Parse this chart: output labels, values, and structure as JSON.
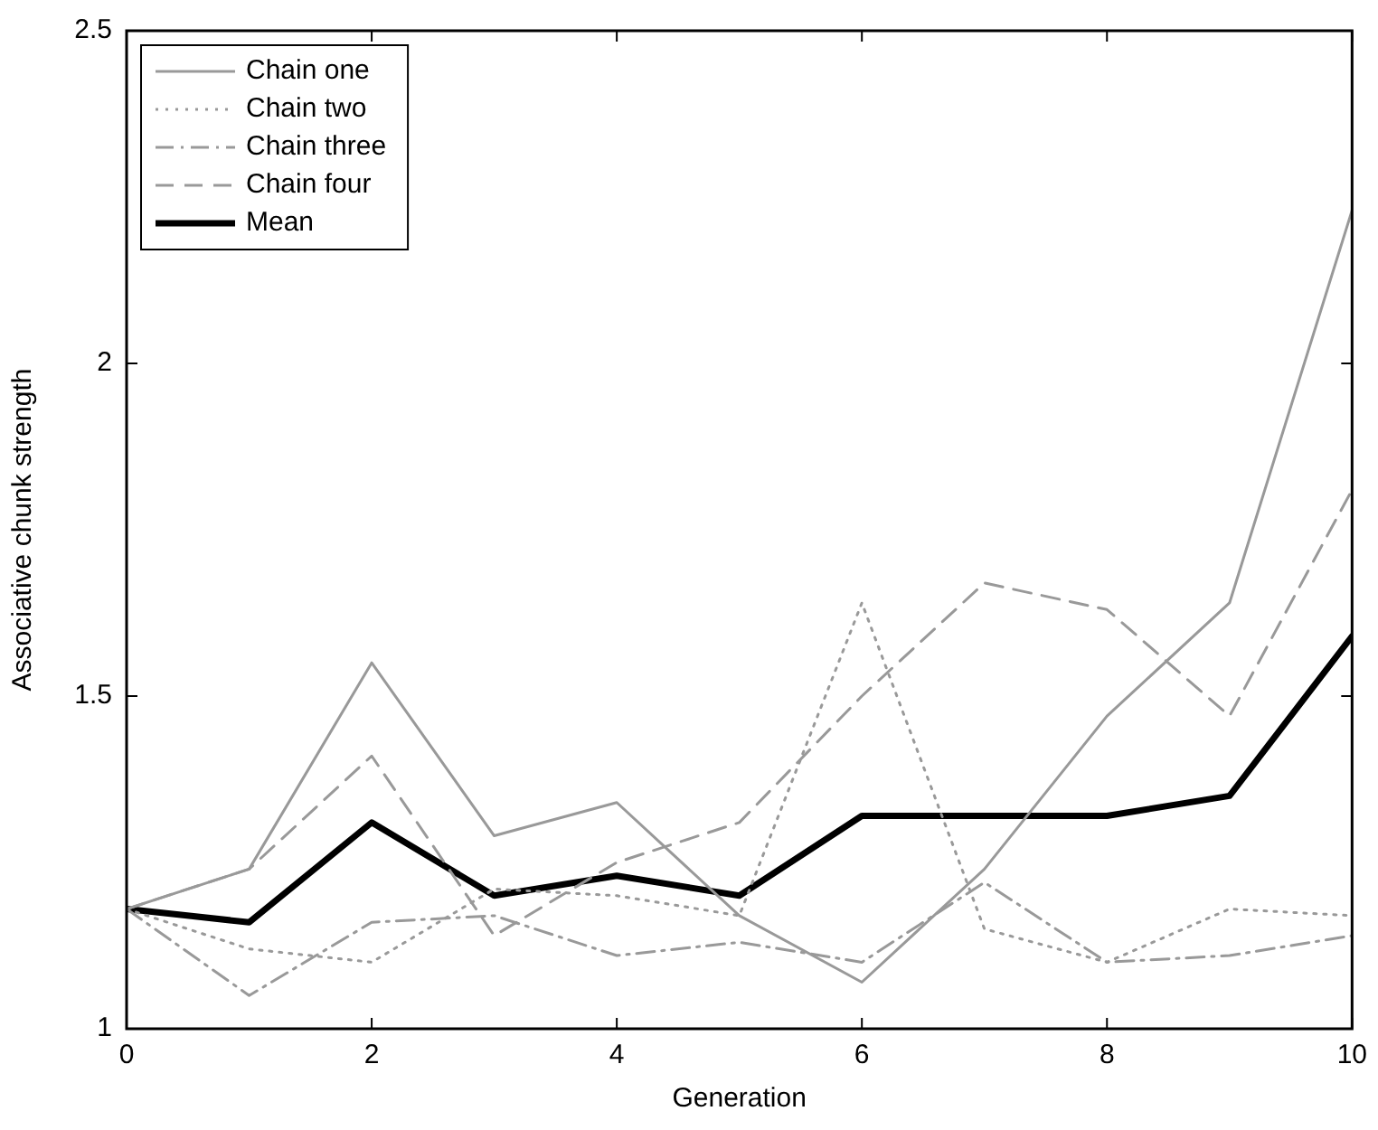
{
  "chart_data": {
    "type": "line",
    "xlabel": "Generation",
    "ylabel": "Associative chunk strength",
    "x": [
      0,
      1,
      2,
      3,
      4,
      5,
      6,
      7,
      8,
      9,
      10
    ],
    "xlim": [
      0,
      10
    ],
    "xticks": [
      0,
      2,
      4,
      6,
      8,
      10
    ],
    "ylim": [
      1,
      2.5
    ],
    "yticks": [
      1,
      1.5,
      2,
      2.5
    ],
    "grid": false,
    "legend": "top left",
    "marker": "none",
    "series": [
      {
        "name": "Chain one",
        "color": "#999999",
        "line_style": "solid",
        "values": [
          1.18,
          1.24,
          1.55,
          1.29,
          1.34,
          1.17,
          1.07,
          1.24,
          1.47,
          1.64,
          2.23
        ]
      },
      {
        "name": "Chain two",
        "color": "#999999",
        "line_style": "dotted",
        "values": [
          1.18,
          1.12,
          1.1,
          1.21,
          1.2,
          1.17,
          1.64,
          1.15,
          1.1,
          1.18,
          1.17
        ]
      },
      {
        "name": "Chain three",
        "color": "#999999",
        "line_style": "dashdot",
        "values": [
          1.18,
          1.05,
          1.16,
          1.17,
          1.11,
          1.13,
          1.1,
          1.22,
          1.1,
          1.11,
          1.14
        ]
      },
      {
        "name": "Chain four",
        "color": "#999999",
        "line_style": "dashed",
        "values": [
          1.18,
          1.24,
          1.41,
          1.14,
          1.25,
          1.31,
          1.5,
          1.67,
          1.63,
          1.47,
          1.81
        ]
      },
      {
        "name": "Mean",
        "color": "#000000",
        "line_style": "solid",
        "values": [
          1.18,
          1.16,
          1.31,
          1.2,
          1.23,
          1.2,
          1.32,
          1.32,
          1.32,
          1.35,
          1.59
        ]
      }
    ]
  }
}
